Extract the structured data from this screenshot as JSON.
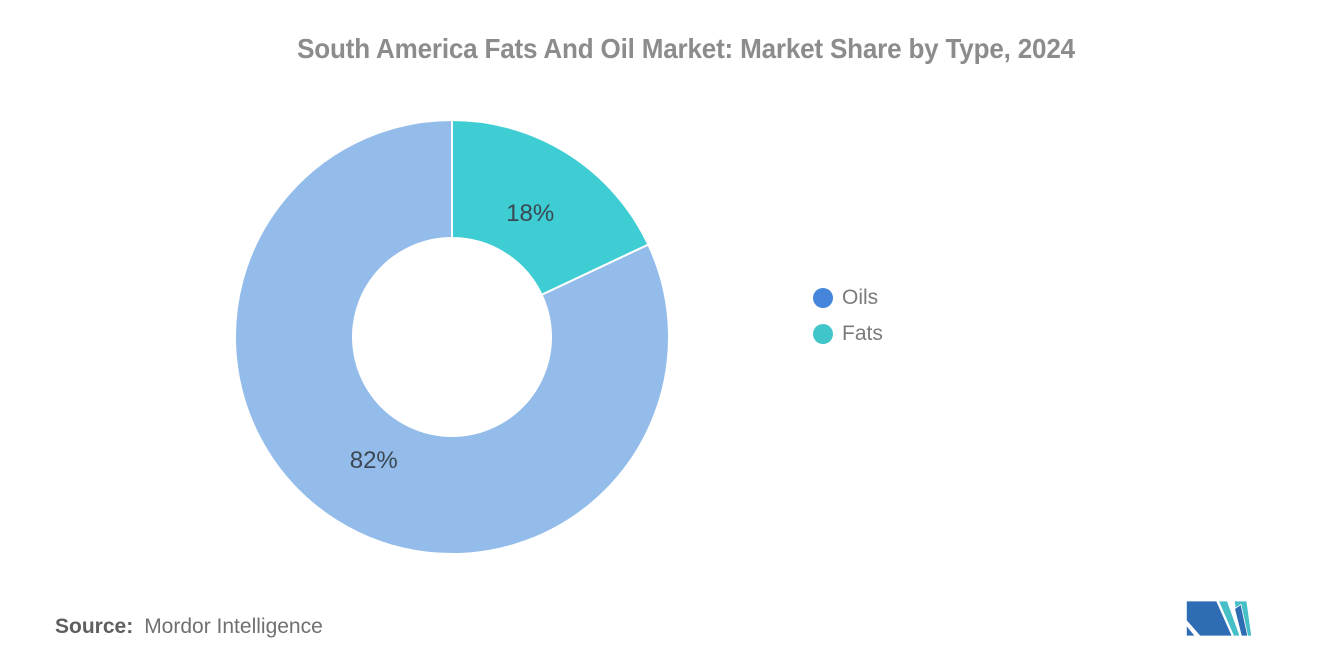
{
  "title": "South America Fats And Oil Market: Market Share by Type, 2024",
  "chart_data": {
    "type": "pie",
    "subtype": "donut",
    "categories": [
      "Oils",
      "Fats"
    ],
    "values": [
      82,
      18
    ],
    "labels": [
      "82%",
      "18%"
    ],
    "unit": "%",
    "title": "South America Fats And Oil Market: Market Share by Type, 2024",
    "slice_colors": [
      "#93BCEB",
      "#3DCDD3"
    ],
    "inner_radius_ratio": 0.455,
    "start_angle": "top",
    "fats_slice_position": "upper-right, clockwise from 12 o'clock",
    "legend_position": "right"
  },
  "legend": {
    "items": [
      {
        "label": "Oils",
        "color": "#4585DB"
      },
      {
        "label": "Fats",
        "color": "#40C5CB"
      }
    ]
  },
  "source": {
    "label": "Source:",
    "value": "Mordor Intelligence"
  },
  "logo": {
    "name": "mordor-intelligence-logo",
    "blue": "#2E6DB4",
    "teal": "#47BFC6"
  }
}
